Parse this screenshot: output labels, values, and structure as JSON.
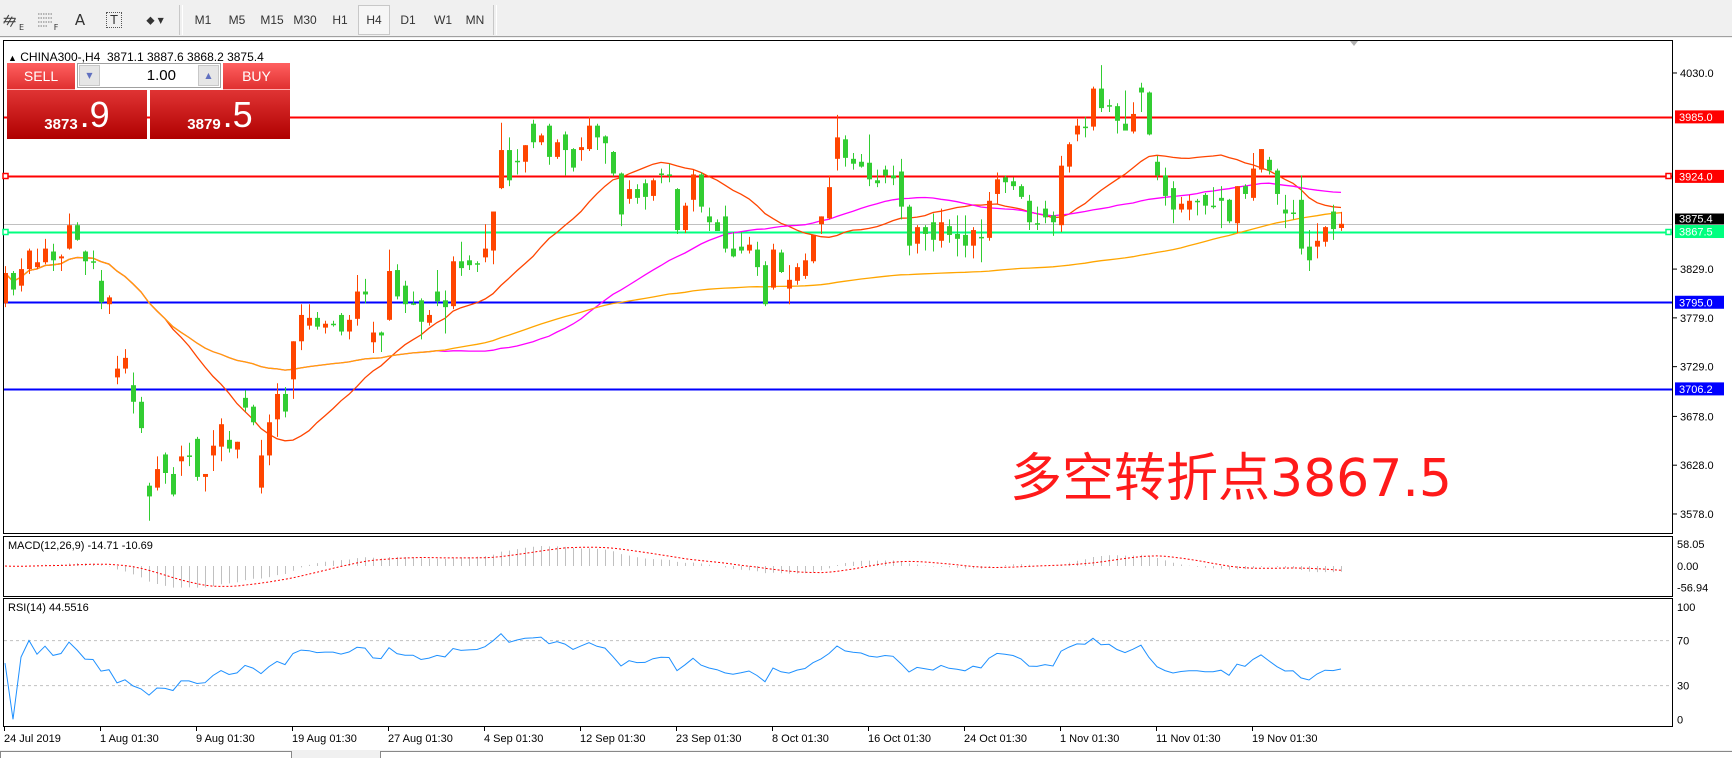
{
  "toolbar": {
    "tools": [
      {
        "icon": "elliott-wave-icon",
        "sub": "E"
      },
      {
        "icon": "fibonacci-icon",
        "sub": "F"
      },
      {
        "icon": "text-icon",
        "label": "A"
      },
      {
        "icon": "text-label-icon",
        "label": "T"
      },
      {
        "icon": "arrows-dropdown-icon"
      }
    ],
    "timeframes": [
      "M1",
      "M5",
      "M15",
      "M30",
      "H1",
      "H4",
      "D1",
      "W1",
      "MN"
    ],
    "active_timeframe": "H4"
  },
  "chart": {
    "symbol": "CHINA300-,H4",
    "ohlc": "3871.1 3887.6 3868.2 3875.4"
  },
  "trade_panel": {
    "sell_label": "SELL",
    "buy_label": "BUY",
    "lot": "1.00",
    "sell_price_main": "3873",
    "sell_price_frac": ".9",
    "buy_price_main": "3879",
    "buy_price_frac": ".5"
  },
  "annotation": "多空转折点3867.5",
  "colors": {
    "bull_candle": "#ff4500",
    "bear_candle": "#32cd32",
    "ma_fast": "#ff4500",
    "ma_mid": "#ff00ff",
    "ma_slow": "#ffa500",
    "rsi_line": "#1e90ff",
    "macd_hist": "#c0c0c0",
    "macd_signal": "#ff0000"
  },
  "chart_data": {
    "type": "candlestick",
    "ylim": [
      3558.5,
      4063.8
    ],
    "ohlc": [
      [
        3794,
        3832,
        3790,
        3825
      ],
      [
        3825,
        3827,
        3802,
        3808
      ],
      [
        3812,
        3840,
        3806,
        3829
      ],
      [
        3829,
        3850,
        3824,
        3848
      ],
      [
        3831,
        3850,
        3829,
        3836
      ],
      [
        3836,
        3860,
        3834,
        3850
      ],
      [
        3847,
        3855,
        3827,
        3838
      ],
      [
        3840,
        3844,
        3827,
        3842
      ],
      [
        3850,
        3886,
        3849,
        3874
      ],
      [
        3874,
        3877,
        3858,
        3859
      ],
      [
        3847,
        3848,
        3823,
        3837
      ],
      [
        3837,
        3848,
        3829,
        3836
      ],
      [
        3817,
        3828,
        3788,
        3795
      ],
      [
        3793,
        3802,
        3783,
        3800
      ],
      [
        3718,
        3740,
        3711,
        3727
      ],
      [
        3727,
        3747,
        3722,
        3738
      ],
      [
        3710,
        3723,
        3681,
        3693
      ],
      [
        3693,
        3698,
        3661,
        3666
      ],
      [
        3607,
        3610,
        3571,
        3596
      ],
      [
        3605,
        3637,
        3602,
        3624
      ],
      [
        3639,
        3641,
        3609,
        3620
      ],
      [
        3619,
        3626,
        3596,
        3598
      ],
      [
        3632,
        3648,
        3617,
        3637
      ],
      [
        3638,
        3651,
        3627,
        3637
      ],
      [
        3655,
        3657,
        3612,
        3616
      ],
      [
        3616,
        3619,
        3601,
        3619
      ],
      [
        3638,
        3664,
        3622,
        3648
      ],
      [
        3647,
        3676,
        3632,
        3670
      ],
      [
        3654,
        3663,
        3641,
        3645
      ],
      [
        3644,
        3652,
        3635,
        3652
      ],
      [
        3697,
        3705,
        3683,
        3687
      ],
      [
        3688,
        3690,
        3669,
        3672
      ],
      [
        3605,
        3654,
        3599,
        3638
      ],
      [
        3638,
        3680,
        3628,
        3672
      ],
      [
        3675,
        3712,
        3657,
        3701
      ],
      [
        3701,
        3708,
        3677,
        3683
      ],
      [
        3716,
        3755,
        3696,
        3755
      ],
      [
        3755,
        3793,
        3746,
        3782
      ],
      [
        3771,
        3793,
        3767,
        3779
      ],
      [
        3779,
        3785,
        3767,
        3770
      ],
      [
        3769,
        3776,
        3763,
        3773
      ],
      [
        3773,
        3776,
        3770,
        3773
      ],
      [
        3782,
        3784,
        3761,
        3765
      ],
      [
        3765,
        3782,
        3757,
        3777
      ],
      [
        3778,
        3823,
        3771,
        3806
      ],
      [
        3806,
        3819,
        3794,
        3803
      ],
      [
        3754,
        3775,
        3743,
        3764
      ],
      [
        3764,
        3765,
        3744,
        3761
      ],
      [
        3777,
        3849,
        3776,
        3827
      ],
      [
        3828,
        3834,
        3798,
        3801
      ],
      [
        3812,
        3817,
        3784,
        3793
      ],
      [
        3794,
        3806,
        3792,
        3794
      ],
      [
        3797,
        3799,
        3757,
        3775
      ],
      [
        3774,
        3787,
        3771,
        3782
      ],
      [
        3806,
        3828,
        3791,
        3796
      ],
      [
        3797,
        3807,
        3763,
        3790
      ],
      [
        3791,
        3842,
        3788,
        3837
      ],
      [
        3837,
        3857,
        3822,
        3830
      ],
      [
        3838,
        3843,
        3828,
        3833
      ],
      [
        3835,
        3837,
        3826,
        3835
      ],
      [
        3841,
        3875,
        3836,
        3850
      ],
      [
        3848,
        3888,
        3834,
        3888
      ],
      [
        3912,
        3979,
        3911,
        3951
      ],
      [
        3951,
        3964,
        3914,
        3920
      ],
      [
        3940,
        3952,
        3926,
        3940
      ],
      [
        3939,
        3956,
        3928,
        3956
      ],
      [
        3978,
        3982,
        3953,
        3959
      ],
      [
        3959,
        3968,
        3956,
        3966
      ],
      [
        3976,
        3978,
        3936,
        3944
      ],
      [
        3944,
        3962,
        3942,
        3959
      ],
      [
        3967,
        3970,
        3925,
        3951
      ],
      [
        3952,
        3953,
        3929,
        3933
      ],
      [
        3951,
        3964,
        3940,
        3954
      ],
      [
        3952,
        3985,
        3950,
        3976
      ],
      [
        3976,
        3978,
        3951,
        3964
      ],
      [
        3965,
        3966,
        3937,
        3958
      ],
      [
        3949,
        3950,
        3924,
        3927
      ],
      [
        3927,
        3928,
        3873,
        3885
      ],
      [
        3901,
        3920,
        3896,
        3911
      ],
      [
        3911,
        3916,
        3896,
        3902
      ],
      [
        3917,
        3921,
        3890,
        3903
      ],
      [
        3904,
        3922,
        3899,
        3920
      ],
      [
        3927,
        3932,
        3917,
        3927
      ],
      [
        3926,
        3937,
        3918,
        3926
      ],
      [
        3911,
        3912,
        3865,
        3869
      ],
      [
        3869,
        3897,
        3866,
        3894
      ],
      [
        3900,
        3931,
        3888,
        3926
      ],
      [
        3926,
        3928,
        3887,
        3893
      ],
      [
        3883,
        3892,
        3868,
        3877
      ],
      [
        3877,
        3880,
        3868,
        3868
      ],
      [
        3883,
        3894,
        3846,
        3850
      ],
      [
        3850,
        3867,
        3841,
        3842
      ],
      [
        3852,
        3867,
        3845,
        3848
      ],
      [
        3848,
        3862,
        3845,
        3854
      ],
      [
        3849,
        3857,
        3822,
        3831
      ],
      [
        3833,
        3837,
        3791,
        3793
      ],
      [
        3810,
        3855,
        3808,
        3849
      ],
      [
        3846,
        3849,
        3825,
        3826
      ],
      [
        3809,
        3833,
        3793,
        3818
      ],
      [
        3817,
        3835,
        3813,
        3831
      ],
      [
        3822,
        3845,
        3819,
        3838
      ],
      [
        3837,
        3864,
        3835,
        3864
      ],
      [
        3875,
        3883,
        3865,
        3883
      ],
      [
        3881,
        3925,
        3880,
        3913
      ],
      [
        3942,
        3987,
        3930,
        3964
      ],
      [
        3962,
        3966,
        3934,
        3943
      ],
      [
        3942,
        3948,
        3931,
        3937
      ],
      [
        3939,
        3947,
        3933,
        3934
      ],
      [
        3938,
        3967,
        3914,
        3921
      ],
      [
        3920,
        3931,
        3913,
        3917
      ],
      [
        3931,
        3935,
        3917,
        3925
      ],
      [
        3925,
        3935,
        3915,
        3922
      ],
      [
        3929,
        3942,
        3880,
        3893
      ],
      [
        3893,
        3895,
        3843,
        3853
      ],
      [
        3855,
        3874,
        3845,
        3872
      ],
      [
        3872,
        3874,
        3848,
        3865
      ],
      [
        3877,
        3886,
        3847,
        3859
      ],
      [
        3858,
        3891,
        3851,
        3877
      ],
      [
        3873,
        3880,
        3856,
        3864
      ],
      [
        3865,
        3884,
        3842,
        3860
      ],
      [
        3864,
        3884,
        3841,
        3853
      ],
      [
        3853,
        3872,
        3840,
        3869
      ],
      [
        3862,
        3880,
        3836,
        3862
      ],
      [
        3861,
        3908,
        3858,
        3899
      ],
      [
        3906,
        3928,
        3896,
        3921
      ],
      [
        3923,
        3925,
        3907,
        3918
      ],
      [
        3919,
        3923,
        3910,
        3914
      ],
      [
        3914,
        3916,
        3901,
        3903
      ],
      [
        3899,
        3905,
        3869,
        3877
      ],
      [
        3876,
        3893,
        3869,
        3876
      ],
      [
        3891,
        3899,
        3876,
        3882
      ],
      [
        3884,
        3888,
        3863,
        3877
      ],
      [
        3874,
        3945,
        3867,
        3935
      ],
      [
        3934,
        3959,
        3928,
        3957
      ],
      [
        3967,
        3983,
        3960,
        3976
      ],
      [
        3975,
        3985,
        3964,
        3975
      ],
      [
        3975,
        4016,
        3971,
        4014
      ],
      [
        4014,
        4038,
        3990,
        3994
      ],
      [
        3997,
        4003,
        3990,
        3997
      ],
      [
        3996,
        3999,
        3968,
        3981
      ],
      [
        3978,
        4012,
        3971,
        3971
      ],
      [
        3970,
        4000,
        3968,
        3988
      ],
      [
        4015,
        4020,
        3990,
        4010
      ],
      [
        4010,
        4011,
        3966,
        3967
      ],
      [
        3939,
        3945,
        3920,
        3925
      ],
      [
        3925,
        3933,
        3894,
        3904
      ],
      [
        3912,
        3919,
        3876,
        3890
      ],
      [
        3890,
        3903,
        3887,
        3896
      ],
      [
        3890,
        3905,
        3879,
        3899
      ],
      [
        3899,
        3901,
        3884,
        3899
      ],
      [
        3905,
        3907,
        3885,
        3894
      ],
      [
        3894,
        3913,
        3891,
        3894
      ],
      [
        3902,
        3914,
        3871,
        3899
      ],
      [
        3900,
        3901,
        3876,
        3878
      ],
      [
        3876,
        3914,
        3866,
        3914
      ],
      [
        3914,
        3916,
        3901,
        3906
      ],
      [
        3902,
        3948,
        3899,
        3932
      ],
      [
        3931,
        3952,
        3928,
        3952
      ],
      [
        3941,
        3944,
        3926,
        3930
      ],
      [
        3930,
        3932,
        3895,
        3906
      ],
      [
        3890,
        3905,
        3871,
        3886
      ],
      [
        3887,
        3900,
        3880,
        3887
      ],
      [
        3900,
        3925,
        3844,
        3850
      ],
      [
        3852,
        3869,
        3827,
        3838
      ],
      [
        3852,
        3876,
        3840,
        3858
      ],
      [
        3857,
        3873,
        3852,
        3872
      ],
      [
        3888,
        3895,
        3859,
        3870
      ],
      [
        3871.1,
        3887.6,
        3868.2,
        3875.4
      ]
    ],
    "price_ticks": [
      "4030.0",
      "3829.0",
      "3779.0",
      "3729.0",
      "3678.0",
      "3628.0",
      "3578.0"
    ],
    "hlines": [
      {
        "label": "3985.0",
        "color": "#ff0000"
      },
      {
        "label": "3924.0",
        "color": "#ff0000",
        "selected": true
      },
      {
        "label": "3867.5",
        "color": "#00ff7f",
        "selected": true
      },
      {
        "label": "3795.0",
        "color": "#0000ff"
      },
      {
        "label": "3706.2",
        "color": "#0000ff"
      }
    ],
    "current_price": {
      "label": "3875.4",
      "line_color": "#c0c0c0"
    },
    "x_tick_labels": [
      "24 Jul 2019",
      "1 Aug 01:30",
      "9 Aug 01:30",
      "19 Aug 01:30",
      "27 Aug 01:30",
      "4 Sep 01:30",
      "12 Sep 01:30",
      "23 Sep 01:30",
      "8 Oct 01:30",
      "16 Oct 01:30",
      "24 Oct 01:30",
      "1 Nov 01:30",
      "11 Nov 01:30",
      "19 Nov 01:30"
    ],
    "macd": {
      "label": "MACD(12,26,9) -14.71 -10.69",
      "ylim": [
        -79,
        79
      ],
      "ticks": [
        "58.05",
        "0.00",
        "-56.94"
      ]
    },
    "rsi": {
      "label": "RSI(14) 44.5516",
      "ylim": [
        -6,
        108
      ],
      "ticks": [
        "100",
        "70",
        "30",
        "0"
      ],
      "levels": [
        70,
        30
      ]
    }
  }
}
